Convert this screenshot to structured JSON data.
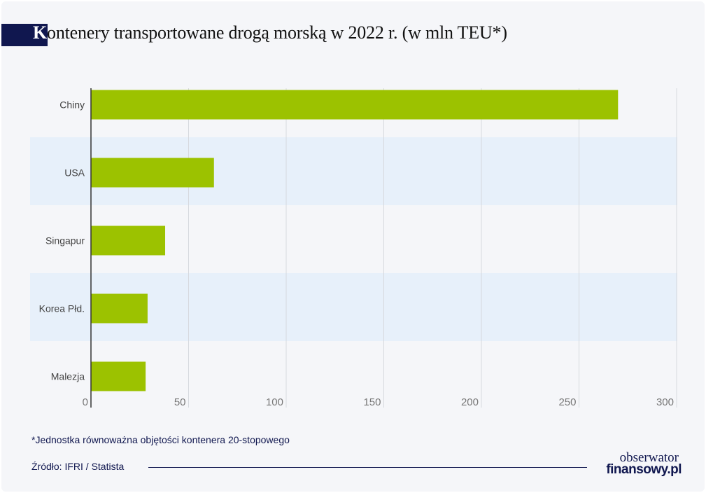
{
  "header": {
    "title_initial": "K",
    "title_rest": "ontenery transportowane drogą morską w 2022 r. (w mln TEU*)"
  },
  "chart_data": {
    "type": "bar",
    "orientation": "horizontal",
    "title": "Kontenery transportowane drogą morską w 2022 r. (w mln TEU*)",
    "categories": [
      "Chiny",
      "USA",
      "Singapur",
      "Korea Płd.",
      "Malezja"
    ],
    "values": [
      270,
      63,
      38,
      29,
      28
    ],
    "x_ticks": [
      0,
      50,
      100,
      150,
      200,
      250,
      300
    ],
    "xlim": [
      0,
      300
    ],
    "grid": true,
    "bar_color": "#9cc200",
    "band_color": "#e7f0fa",
    "axis_label_color": "#777777"
  },
  "footer": {
    "footnote": "*Jednostka równoważna objętości kontenera 20-stopowego",
    "source": "Źródło: IFRI / Statista",
    "logo_line1": "obserwator",
    "logo_line2": "finansowy.pl"
  },
  "colors": {
    "navy": "#10174f",
    "card_background": "#f5f6f9"
  }
}
